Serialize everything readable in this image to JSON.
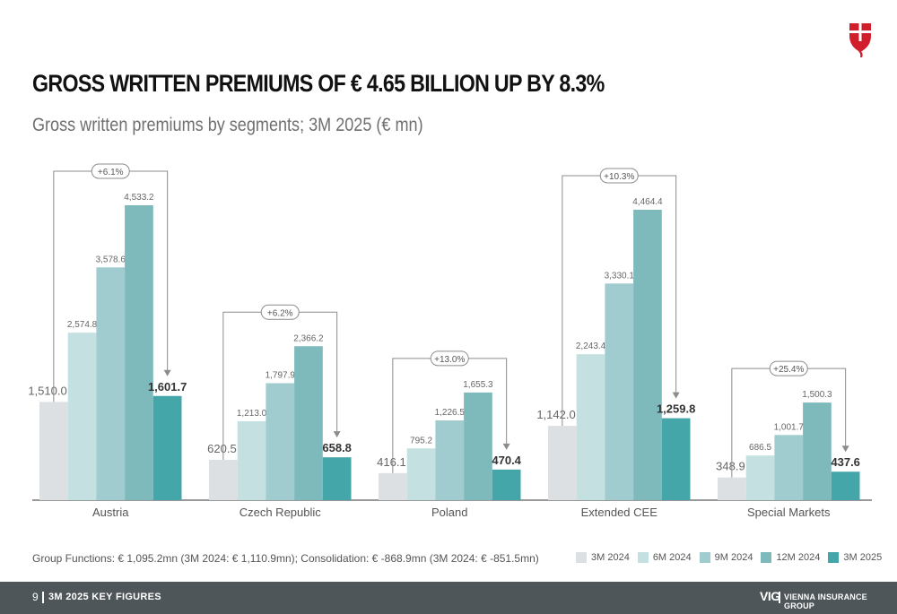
{
  "header": {
    "title": "GROSS WRITTEN PREMIUMS OF € 4.65 BILLION UP BY 8.3%",
    "subtitle": "Gross written premiums by segments; 3M 2025 (€ mn)"
  },
  "colors": {
    "series": [
      "#dde0e3",
      "#c4e0e0",
      "#a0ccd0",
      "#7eb9bc",
      "#44a6a8"
    ],
    "bracket": "#8c8c8c",
    "footer": "#4f5659",
    "logo": "#d01e2d"
  },
  "chart_data": {
    "type": "bar",
    "categories": [
      "Austria",
      "Czech Republic",
      "Poland",
      "Extended CEE",
      "Special Markets"
    ],
    "series": [
      {
        "name": "3M 2024",
        "values": [
          1510.0,
          620.5,
          416.1,
          1142.0,
          348.9
        ],
        "labels": [
          "1,510.0",
          "620.5",
          "416.1",
          "1,142.0",
          "348.9"
        ]
      },
      {
        "name": "6M 2024",
        "values": [
          2574.8,
          1213.0,
          795.2,
          2243.4,
          686.5
        ],
        "labels": [
          "2,574.8",
          "1,213.0",
          "795.2",
          "2,243.4",
          "686.5"
        ]
      },
      {
        "name": "9M 2024",
        "values": [
          3578.6,
          1797.9,
          1226.5,
          3330.1,
          1001.7
        ],
        "labels": [
          "3,578.6",
          "1,797.9",
          "1,226.5",
          "3,330.1",
          "1,001.7"
        ]
      },
      {
        "name": "12M 2024",
        "values": [
          4533.2,
          2366.2,
          1655.3,
          4464.4,
          1500.3
        ],
        "labels": [
          "4,533.2",
          "2,366.2",
          "1,655.3",
          "4,464.4",
          "1,500.3"
        ]
      },
      {
        "name": "3M 2025",
        "values": [
          1601.7,
          658.8,
          470.4,
          1259.8,
          437.6
        ],
        "labels": [
          "1,601.7",
          "658.8",
          "470.4",
          "1,259.8",
          "437.6"
        ]
      }
    ],
    "growth": [
      "+6.1%",
      "+6.2%",
      "+13.0%",
      "+10.3%",
      "+25.4%"
    ],
    "ylim": [
      0,
      4533.2
    ],
    "grid": false,
    "legend_position": "bottom-right"
  },
  "footnote": "Group Functions: € 1,095.2mn (3M 2024: € 1,110.9mn); Consolidation: € -868.9mn (3M 2024: € -851.5mn)",
  "footer": {
    "page_number": "9",
    "label": "3M 2025 KEY FIGURES",
    "brand_short": "VIG",
    "brand_name": "VIENNA INSURANCE GROUP"
  }
}
